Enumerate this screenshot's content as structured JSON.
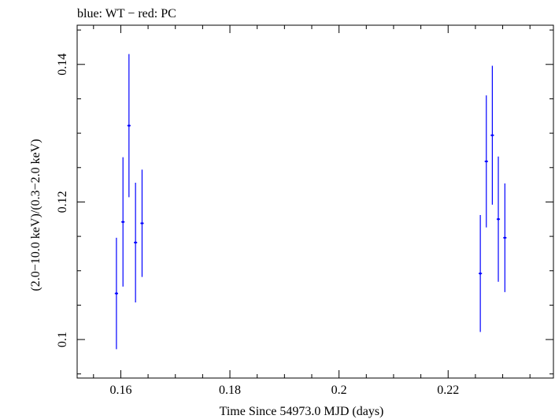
{
  "chart_data": {
    "type": "scatter",
    "title": "blue: WT − red: PC",
    "xlabel": "Time Since 54973.0 MJD (days)",
    "ylabel": "(2.0−10.0 keV)/(0.3−2.0 keV)",
    "xlim": [
      0.152,
      0.2393
    ],
    "ylim": [
      0.0944,
      0.1457
    ],
    "xticks": [
      0.16,
      0.18,
      0.2,
      0.22
    ],
    "xtick_labels": [
      "0.16",
      "0.18",
      "0.2",
      "0.22"
    ],
    "yticks": [
      0.1,
      0.12,
      0.14
    ],
    "ytick_labels": [
      "0.1",
      "0.12",
      "0.14"
    ],
    "grid": false,
    "colors": {
      "series": "#0000ff",
      "axes": "#000000",
      "background": "#ffffff"
    },
    "series": [
      {
        "name": "WT",
        "color": "#0000ff",
        "points": [
          {
            "x": 0.1592,
            "xerr": 0.0003,
            "y": 0.1067,
            "yerr": 0.0081
          },
          {
            "x": 0.1604,
            "xerr": 0.0003,
            "y": 0.1171,
            "yerr": 0.0094
          },
          {
            "x": 0.1615,
            "xerr": 0.0003,
            "y": 0.1311,
            "yerr": 0.0104
          },
          {
            "x": 0.1627,
            "xerr": 0.0003,
            "y": 0.1141,
            "yerr": 0.0087
          },
          {
            "x": 0.1639,
            "xerr": 0.0003,
            "y": 0.1169,
            "yerr": 0.0078
          },
          {
            "x": 0.2259,
            "xerr": 0.0003,
            "y": 0.1096,
            "yerr": 0.0085
          },
          {
            "x": 0.227,
            "xerr": 0.0003,
            "y": 0.1259,
            "yerr": 0.0096
          },
          {
            "x": 0.2281,
            "xerr": 0.0003,
            "y": 0.1297,
            "yerr": 0.0101
          },
          {
            "x": 0.2292,
            "xerr": 0.0003,
            "y": 0.1175,
            "yerr": 0.0091
          },
          {
            "x": 0.2304,
            "xerr": 0.0003,
            "y": 0.1148,
            "yerr": 0.0079
          }
        ]
      }
    ]
  }
}
